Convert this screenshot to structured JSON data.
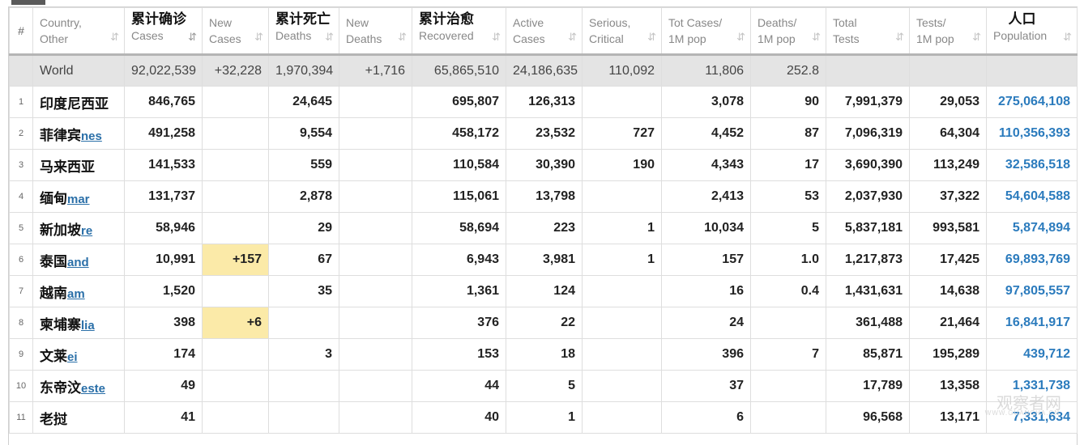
{
  "header": {
    "hash": "#",
    "country": {
      "l1": "Country,",
      "l2": "Other"
    },
    "total_cases": {
      "cn": "累计确诊",
      "l2": "Cases"
    },
    "new_cases": {
      "l1": "New",
      "l2": "Cases"
    },
    "total_deaths": {
      "cn": "累计死亡",
      "l2": "Deaths"
    },
    "new_deaths": {
      "l1": "New",
      "l2": "Deaths"
    },
    "recovered": {
      "cn": "累计治愈",
      "l2": "Recovered"
    },
    "active": {
      "l1": "Active",
      "l2": "Cases"
    },
    "serious": {
      "l1": "Serious,",
      "l2": "Critical"
    },
    "cases_1m": {
      "l1": "Tot Cases/",
      "l2": "1M pop"
    },
    "deaths_1m": {
      "l1": "Deaths/",
      "l2": "1M pop"
    },
    "total_tests": {
      "l1": "Total",
      "l2": "Tests"
    },
    "tests_1m": {
      "l1": "Tests/",
      "l2": "1M pop"
    },
    "population": {
      "cn": "人口",
      "l2": "Population"
    },
    "sort_icon": "⇵"
  },
  "world": {
    "name": "World",
    "total_cases": "92,022,539",
    "new_cases": "+32,228",
    "total_deaths": "1,970,394",
    "new_deaths": "+1,716",
    "recovered": "65,865,510",
    "active": "24,186,635",
    "serious": "110,092",
    "cases_1m": "11,806",
    "deaths_1m": "252.8",
    "total_tests": "",
    "tests_1m": "",
    "population": ""
  },
  "rows": [
    {
      "idx": "1",
      "cn": "印度尼西亚",
      "en": "",
      "total_cases": "846,765",
      "new_cases": "",
      "total_deaths": "24,645",
      "new_deaths": "",
      "recovered": "695,807",
      "active": "126,313",
      "serious": "",
      "cases_1m": "3,078",
      "deaths_1m": "90",
      "total_tests": "7,991,379",
      "tests_1m": "29,053",
      "population": "275,064,108"
    },
    {
      "idx": "2",
      "cn": "菲律宾",
      "en": "nes",
      "total_cases": "491,258",
      "new_cases": "",
      "total_deaths": "9,554",
      "new_deaths": "",
      "recovered": "458,172",
      "active": "23,532",
      "serious": "727",
      "cases_1m": "4,452",
      "deaths_1m": "87",
      "total_tests": "7,096,319",
      "tests_1m": "64,304",
      "population": "110,356,393"
    },
    {
      "idx": "3",
      "cn": "马来西亚",
      "en": "",
      "total_cases": "141,533",
      "new_cases": "",
      "total_deaths": "559",
      "new_deaths": "",
      "recovered": "110,584",
      "active": "30,390",
      "serious": "190",
      "cases_1m": "4,343",
      "deaths_1m": "17",
      "total_tests": "3,690,390",
      "tests_1m": "113,249",
      "population": "32,586,518"
    },
    {
      "idx": "4",
      "cn": "缅甸",
      "en": "mar",
      "total_cases": "131,737",
      "new_cases": "",
      "total_deaths": "2,878",
      "new_deaths": "",
      "recovered": "115,061",
      "active": "13,798",
      "serious": "",
      "cases_1m": "2,413",
      "deaths_1m": "53",
      "total_tests": "2,037,930",
      "tests_1m": "37,322",
      "population": "54,604,588"
    },
    {
      "idx": "5",
      "cn": "新加坡",
      "en": "re",
      "total_cases": "58,946",
      "new_cases": "",
      "total_deaths": "29",
      "new_deaths": "",
      "recovered": "58,694",
      "active": "223",
      "serious": "1",
      "cases_1m": "10,034",
      "deaths_1m": "5",
      "total_tests": "5,837,181",
      "tests_1m": "993,581",
      "population": "5,874,894"
    },
    {
      "idx": "6",
      "cn": "泰国",
      "en": "and",
      "total_cases": "10,991",
      "new_cases": "+157",
      "total_deaths": "67",
      "new_deaths": "",
      "recovered": "6,943",
      "active": "3,981",
      "serious": "1",
      "cases_1m": "157",
      "deaths_1m": "1.0",
      "total_tests": "1,217,873",
      "tests_1m": "17,425",
      "population": "69,893,769"
    },
    {
      "idx": "7",
      "cn": "越南",
      "en": "am",
      "total_cases": "1,520",
      "new_cases": "",
      "total_deaths": "35",
      "new_deaths": "",
      "recovered": "1,361",
      "active": "124",
      "serious": "",
      "cases_1m": "16",
      "deaths_1m": "0.4",
      "total_tests": "1,431,631",
      "tests_1m": "14,638",
      "population": "97,805,557"
    },
    {
      "idx": "8",
      "cn": "柬埔寨",
      "en": "lia",
      "total_cases": "398",
      "new_cases": "+6",
      "total_deaths": "",
      "new_deaths": "",
      "recovered": "376",
      "active": "22",
      "serious": "",
      "cases_1m": "24",
      "deaths_1m": "",
      "total_tests": "361,488",
      "tests_1m": "21,464",
      "population": "16,841,917"
    },
    {
      "idx": "9",
      "cn": "文莱",
      "en": "ei",
      "total_cases": "174",
      "new_cases": "",
      "total_deaths": "3",
      "new_deaths": "",
      "recovered": "153",
      "active": "18",
      "serious": "",
      "cases_1m": "396",
      "deaths_1m": "7",
      "total_tests": "85,871",
      "tests_1m": "195,289",
      "population": "439,712"
    },
    {
      "idx": "10",
      "cn": "东帝汶",
      "en": "este",
      "total_cases": "49",
      "new_cases": "",
      "total_deaths": "",
      "new_deaths": "",
      "recovered": "44",
      "active": "5",
      "serious": "",
      "cases_1m": "37",
      "deaths_1m": "",
      "total_tests": "17,789",
      "tests_1m": "13,358",
      "population": "1,331,738"
    },
    {
      "idx": "11",
      "cn": "老挝",
      "en": "",
      "total_cases": "41",
      "new_cases": "",
      "total_deaths": "",
      "new_deaths": "",
      "recovered": "40",
      "active": "1",
      "serious": "",
      "cases_1m": "6",
      "deaths_1m": "",
      "total_tests": "96,568",
      "tests_1m": "13,171",
      "population": "7,331,634"
    }
  ],
  "watermark": {
    "cn": "观察者网",
    "en": "WWW.GUANCHA.CN"
  },
  "colors": {
    "highlight": "#fbeaa8",
    "link": "#2b7bbd",
    "world_bg": "#e4e4e4"
  }
}
